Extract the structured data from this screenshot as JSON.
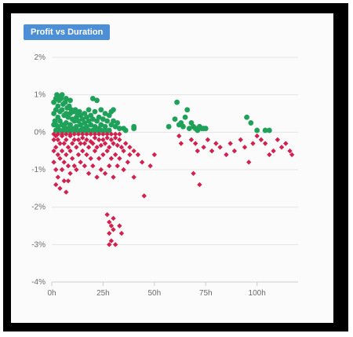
{
  "chart_data": {
    "type": "scatter",
    "title": "Profit vs Duration",
    "xlabel": "",
    "ylabel": "",
    "xlim": [
      0,
      120
    ],
    "ylim": [
      -4,
      2
    ],
    "x_ticks": [
      0,
      25,
      50,
      75,
      100
    ],
    "x_tick_labels": [
      "0h",
      "25h",
      "50h",
      "75h",
      "100h"
    ],
    "y_ticks": [
      -4,
      -3,
      -2,
      -1,
      0,
      1,
      2
    ],
    "y_tick_labels": [
      "-4%",
      "-3%",
      "-2%",
      "-1%",
      "0%",
      "1%",
      "2%"
    ],
    "grid": true,
    "series": [
      {
        "color": "#1fa15a",
        "marker": "circle",
        "points": [
          [
            1,
            0.2
          ],
          [
            1,
            0.5
          ],
          [
            1,
            0.8
          ],
          [
            1.5,
            0.3
          ],
          [
            2,
            0.9
          ],
          [
            2,
            0.6
          ],
          [
            2,
            0.2
          ],
          [
            2.5,
            1.0
          ],
          [
            3,
            0.7
          ],
          [
            3,
            0.4
          ],
          [
            3,
            0.15
          ],
          [
            3.5,
            0.85
          ],
          [
            4,
            0.55
          ],
          [
            4,
            0.3
          ],
          [
            4.5,
            0.9
          ],
          [
            5,
            0.6
          ],
          [
            5,
            0.2
          ],
          [
            5.5,
            0.75
          ],
          [
            6,
            0.45
          ],
          [
            6,
            0.15
          ],
          [
            6.5,
            0.8
          ],
          [
            7,
            0.5
          ],
          [
            7,
            0.25
          ],
          [
            7.5,
            0.65
          ],
          [
            8,
            0.4
          ],
          [
            8,
            0.1
          ],
          [
            8.5,
            0.7
          ],
          [
            9,
            0.5
          ],
          [
            9,
            0.2
          ],
          [
            9.5,
            0.6
          ],
          [
            10,
            0.35
          ],
          [
            10,
            0.1
          ],
          [
            10.5,
            0.55
          ],
          [
            11,
            0.3
          ],
          [
            11.5,
            0.6
          ],
          [
            12,
            0.4
          ],
          [
            12,
            0.15
          ],
          [
            12.5,
            0.5
          ],
          [
            13,
            0.3
          ],
          [
            13.5,
            0.55
          ],
          [
            14,
            0.2
          ],
          [
            14,
            0.45
          ],
          [
            15,
            0.35
          ],
          [
            15,
            0.1
          ],
          [
            16,
            0.5
          ],
          [
            16,
            0.25
          ],
          [
            17,
            0.4
          ],
          [
            17,
            0.15
          ],
          [
            18,
            0.6
          ],
          [
            18,
            0.3
          ],
          [
            19,
            0.45
          ],
          [
            19,
            0.2
          ],
          [
            20,
            0.9
          ],
          [
            20,
            0.35
          ],
          [
            21,
            0.55
          ],
          [
            21,
            0.15
          ],
          [
            22,
            0.85
          ],
          [
            22,
            0.3
          ],
          [
            23,
            0.4
          ],
          [
            23,
            0.1
          ],
          [
            24,
            0.6
          ],
          [
            24,
            0.2
          ],
          [
            25,
            0.35
          ],
          [
            26,
            0.5
          ],
          [
            26,
            0.15
          ],
          [
            27,
            0.3
          ],
          [
            28,
            0.45
          ],
          [
            29,
            0.2
          ],
          [
            30,
            0.6
          ],
          [
            30,
            0.3
          ],
          [
            31,
            0.15
          ],
          [
            32,
            0.25
          ],
          [
            3,
            0.95
          ],
          [
            5,
            1.0
          ],
          [
            7,
            0.9
          ],
          [
            9,
            0.85
          ],
          [
            2,
            0.05
          ],
          [
            4,
            0.05
          ],
          [
            6,
            0.05
          ],
          [
            8,
            0.05
          ],
          [
            10,
            0.05
          ],
          [
            12,
            0.05
          ],
          [
            14,
            0.05
          ],
          [
            16,
            0.05
          ],
          [
            18,
            0.05
          ],
          [
            20,
            0.05
          ],
          [
            22,
            0.05
          ],
          [
            24,
            0.05
          ],
          [
            26,
            0.05
          ],
          [
            28,
            0.05
          ],
          [
            29,
            0.55
          ],
          [
            33,
            0.1
          ],
          [
            35,
            0.1
          ],
          [
            36,
            0.05
          ],
          [
            40,
            0.1
          ],
          [
            40,
            0.15
          ],
          [
            57,
            0.15
          ],
          [
            60,
            0.35
          ],
          [
            61,
            0.8
          ],
          [
            62,
            0.2
          ],
          [
            63,
            0.25
          ],
          [
            64,
            0.15
          ],
          [
            65,
            0.4
          ],
          [
            66,
            0.6
          ],
          [
            67,
            0.1
          ],
          [
            68,
            0.25
          ],
          [
            69,
            0.15
          ],
          [
            70,
            0.1
          ],
          [
            71,
            0.05
          ],
          [
            72,
            0.15
          ],
          [
            73,
            0.1
          ],
          [
            74,
            0.1
          ],
          [
            75,
            0.1
          ],
          [
            95,
            0.4
          ],
          [
            97,
            0.25
          ],
          [
            100,
            0.05
          ],
          [
            104,
            0.05
          ],
          [
            106,
            0.05
          ]
        ]
      },
      {
        "color": "#d1214e",
        "marker": "diamond",
        "points": [
          [
            1,
            -0.2
          ],
          [
            1,
            -0.5
          ],
          [
            1,
            -0.8
          ],
          [
            2,
            -1.0
          ],
          [
            2,
            -0.4
          ],
          [
            2,
            -0.1
          ],
          [
            2,
            -1.4
          ],
          [
            3,
            -0.6
          ],
          [
            3,
            -0.2
          ],
          [
            3,
            -1.2
          ],
          [
            4,
            -0.3
          ],
          [
            4,
            -0.7
          ],
          [
            4,
            -1.5
          ],
          [
            5,
            -0.1
          ],
          [
            5,
            -0.5
          ],
          [
            5,
            -1.0
          ],
          [
            6,
            -0.3
          ],
          [
            6,
            -0.8
          ],
          [
            6,
            -1.3
          ],
          [
            7,
            -0.2
          ],
          [
            7,
            -0.6
          ],
          [
            7,
            -1.6
          ],
          [
            8,
            -0.4
          ],
          [
            8,
            -0.9
          ],
          [
            8,
            -1.3
          ],
          [
            9,
            -0.1
          ],
          [
            9,
            -0.5
          ],
          [
            9,
            -1.1
          ],
          [
            10,
            -0.3
          ],
          [
            10,
            -0.7
          ],
          [
            11,
            -0.2
          ],
          [
            11,
            -0.9
          ],
          [
            12,
            -0.4
          ],
          [
            12,
            -1.0
          ],
          [
            13,
            -0.2
          ],
          [
            13,
            -0.6
          ],
          [
            14,
            -0.3
          ],
          [
            14,
            -0.8
          ],
          [
            15,
            -0.15
          ],
          [
            15,
            -0.5
          ],
          [
            16,
            -0.3
          ],
          [
            16,
            -0.9
          ],
          [
            17,
            -0.2
          ],
          [
            17,
            -0.6
          ],
          [
            18,
            -0.4
          ],
          [
            18,
            -1.1
          ],
          [
            19,
            -0.25
          ],
          [
            19,
            -0.7
          ],
          [
            20,
            -0.3
          ],
          [
            20,
            -0.9
          ],
          [
            21,
            -0.15
          ],
          [
            21,
            -0.5
          ],
          [
            22,
            -0.4
          ],
          [
            22,
            -1.2
          ],
          [
            23,
            -0.2
          ],
          [
            23,
            -0.7
          ],
          [
            24,
            -0.35
          ],
          [
            24,
            -1.0
          ],
          [
            25,
            -0.2
          ],
          [
            25,
            -0.6
          ],
          [
            26,
            -0.3
          ],
          [
            26,
            -1.1
          ],
          [
            27,
            -0.15
          ],
          [
            27,
            -0.5
          ],
          [
            28,
            -0.4
          ],
          [
            28,
            -0.9
          ],
          [
            29,
            -0.2
          ],
          [
            29,
            -0.7
          ],
          [
            30,
            -0.3
          ],
          [
            30,
            -1.2
          ],
          [
            31,
            -0.15
          ],
          [
            31,
            -0.6
          ],
          [
            32,
            -0.35
          ],
          [
            32,
            -0.9
          ],
          [
            33,
            -0.2
          ],
          [
            33,
            -0.7
          ],
          [
            34,
            -0.4
          ],
          [
            35,
            -0.5
          ],
          [
            35,
            -1.0
          ],
          [
            36,
            -0.3
          ],
          [
            37,
            -0.8
          ],
          [
            38,
            -0.4
          ],
          [
            38,
            -0.6
          ],
          [
            40,
            -0.5
          ],
          [
            40,
            -1.2
          ],
          [
            42,
            -0.6
          ],
          [
            44,
            -0.8
          ],
          [
            45,
            -1.7
          ],
          [
            48,
            -0.9
          ],
          [
            50,
            -0.6
          ],
          [
            1,
            -0.05
          ],
          [
            3,
            -0.05
          ],
          [
            5,
            -0.05
          ],
          [
            7,
            -0.05
          ],
          [
            9,
            -0.05
          ],
          [
            11,
            -0.05
          ],
          [
            13,
            -0.05
          ],
          [
            15,
            -0.05
          ],
          [
            17,
            -0.05
          ],
          [
            19,
            -0.05
          ],
          [
            21,
            -0.05
          ],
          [
            23,
            -0.05
          ],
          [
            25,
            -0.05
          ],
          [
            27,
            -0.05
          ],
          [
            29,
            -0.05
          ],
          [
            31,
            -0.05
          ],
          [
            33,
            -0.05
          ],
          [
            27,
            -2.2
          ],
          [
            28,
            -2.4
          ],
          [
            28,
            -2.7
          ],
          [
            29,
            -2.5
          ],
          [
            29,
            -2.9
          ],
          [
            30,
            -2.3
          ],
          [
            30,
            -2.6
          ],
          [
            31,
            -3.0
          ],
          [
            33,
            -2.5
          ],
          [
            34,
            -2.7
          ],
          [
            28,
            -3.0
          ],
          [
            62,
            -0.1
          ],
          [
            63,
            -0.3
          ],
          [
            68,
            -0.2
          ],
          [
            70,
            -0.3
          ],
          [
            71,
            -0.5
          ],
          [
            72,
            -1.4
          ],
          [
            69,
            -1.1
          ],
          [
            74,
            -0.4
          ],
          [
            76,
            -0.2
          ],
          [
            78,
            -0.5
          ],
          [
            80,
            -0.3
          ],
          [
            82,
            -0.4
          ],
          [
            85,
            -0.6
          ],
          [
            87,
            -0.3
          ],
          [
            89,
            -0.5
          ],
          [
            92,
            -0.2
          ],
          [
            94,
            -0.4
          ],
          [
            96,
            -0.8
          ],
          [
            98,
            -0.3
          ],
          [
            100,
            -0.1
          ],
          [
            102,
            -0.2
          ],
          [
            104,
            -0.3
          ],
          [
            106,
            -0.6
          ],
          [
            108,
            -0.5
          ],
          [
            110,
            -0.2
          ],
          [
            112,
            -0.4
          ],
          [
            114,
            -0.3
          ],
          [
            116,
            -0.5
          ],
          [
            117,
            -0.6
          ]
        ]
      }
    ]
  }
}
